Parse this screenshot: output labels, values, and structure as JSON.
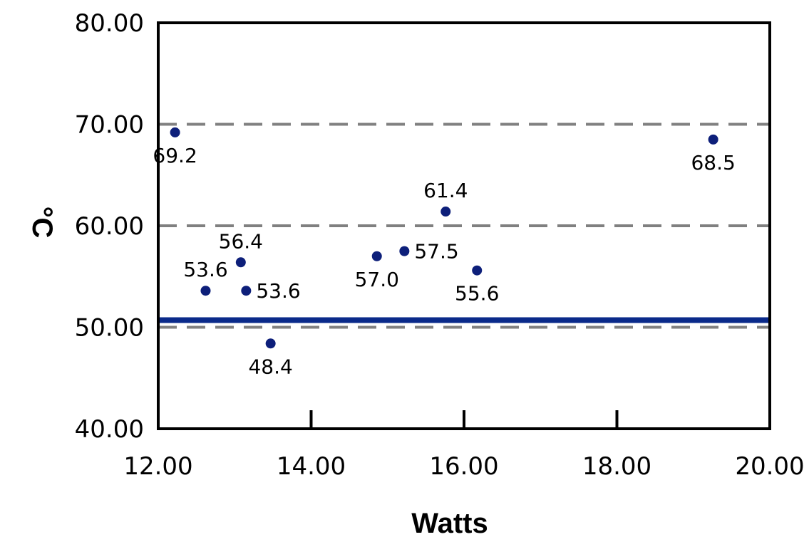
{
  "chart_data": {
    "type": "scatter",
    "xlabel": "Watts",
    "ylabel": "°C",
    "xlim": [
      12,
      20
    ],
    "ylim": [
      40,
      80
    ],
    "x_ticks": [
      "12.00",
      "14.00",
      "16.00",
      "18.00",
      "20.00"
    ],
    "y_ticks": [
      "40.00",
      "50.00",
      "60.00",
      "70.00",
      "80.00"
    ],
    "gridlines_y": [
      50,
      60,
      70
    ],
    "grid": "dashed horizontal",
    "reference_line": {
      "y": 50.7,
      "color": "#0a2a8a"
    },
    "marker_color": "#0d1f7a",
    "points": [
      {
        "x": 12.22,
        "y": 69.2,
        "label": "69.2",
        "label_pos": "below"
      },
      {
        "x": 12.62,
        "y": 53.6,
        "label": "53.6",
        "label_pos": "above"
      },
      {
        "x": 13.08,
        "y": 56.4,
        "label": "56.4",
        "label_pos": "above"
      },
      {
        "x": 13.15,
        "y": 53.6,
        "label": "53.6",
        "label_pos": "right"
      },
      {
        "x": 13.47,
        "y": 48.4,
        "label": "48.4",
        "label_pos": "below"
      },
      {
        "x": 14.86,
        "y": 57.0,
        "label": "57.0",
        "label_pos": "below"
      },
      {
        "x": 15.22,
        "y": 57.5,
        "label": "57.5",
        "label_pos": "right"
      },
      {
        "x": 15.76,
        "y": 61.4,
        "label": "61.4",
        "label_pos": "above"
      },
      {
        "x": 16.17,
        "y": 55.6,
        "label": "55.6",
        "label_pos": "below"
      },
      {
        "x": 19.26,
        "y": 68.5,
        "label": "68.5",
        "label_pos": "below"
      }
    ]
  }
}
